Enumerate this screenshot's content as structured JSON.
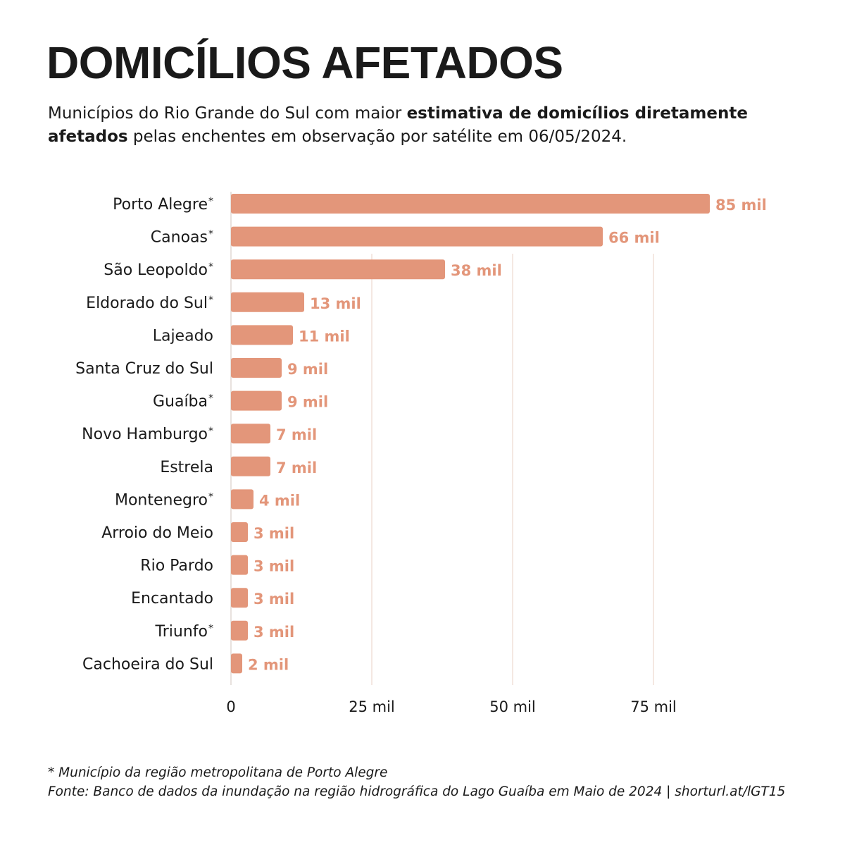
{
  "accent_color": "#E3967A",
  "title": "DOMICÍLIOS AFETADOS",
  "subtitle": {
    "part1": "Municípios do Rio Grande do Sul com maior ",
    "bold": "estimativa de domicílios diretamente afetados",
    "part2": " pelas enchentes em observação por satélite em 06/05/2024."
  },
  "chart_data": {
    "type": "bar",
    "orientation": "horizontal",
    "categories": [
      "Porto Alegre*",
      "Canoas*",
      "São Leopoldo*",
      "Eldorado do Sul*",
      "Lajeado",
      "Santa Cruz do Sul",
      "Guaíba*",
      "Novo Hamburgo*",
      "Estrela",
      "Montenegro*",
      "Arroio do Meio",
      "Rio Pardo",
      "Encantado",
      "Triunfo*",
      "Cachoeira do Sul"
    ],
    "values": [
      85,
      66,
      38,
      13,
      11,
      9,
      9,
      7,
      7,
      4,
      3,
      3,
      3,
      3,
      2
    ],
    "value_labels": [
      "85 mil",
      "66 mil",
      "38 mil",
      "13 mil",
      "11 mil",
      "9 mil",
      "9 mil",
      "7 mil",
      "7 mil",
      "4 mil",
      "3 mil",
      "3 mil",
      "3 mil",
      "3 mil",
      "2 mil"
    ],
    "unit": "mil",
    "xlim": [
      0,
      100
    ],
    "xticks": [
      0,
      25,
      50,
      75
    ],
    "xtick_labels": [
      "0",
      "25 mil",
      "50 mil",
      "75 mil"
    ],
    "grid": true
  },
  "footnote": {
    "line1": "* Município da região metropolitana de Porto Alegre",
    "line2": "Fonte: Banco de dados da inundação na região hidrográfica do Lago Guaíba em Maio de 2024 | shorturl.at/lGT15"
  }
}
